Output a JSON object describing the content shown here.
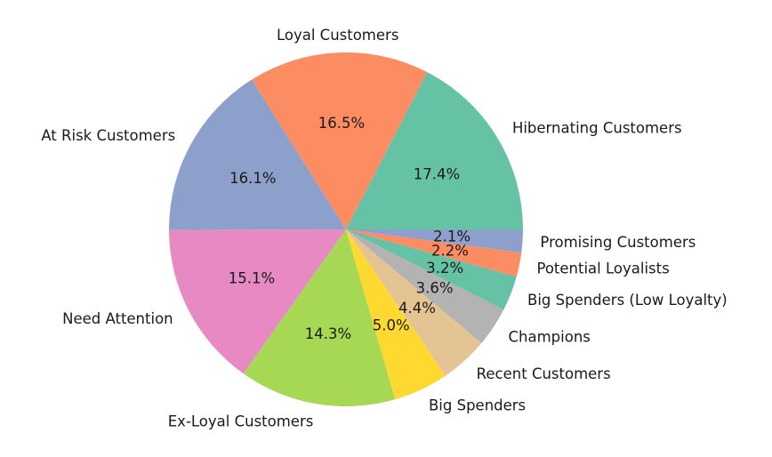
{
  "chart_data": {
    "type": "pie",
    "title": "",
    "start_angle_deg": 0,
    "direction": "counterclockwise",
    "slices": [
      {
        "label": "Hibernating Customers",
        "value": 17.4,
        "pct_label": "17.4%",
        "color": "#66c2a5"
      },
      {
        "label": "Loyal Customers",
        "value": 16.5,
        "pct_label": "16.5%",
        "color": "#fc8d62"
      },
      {
        "label": "At Risk Customers",
        "value": 16.1,
        "pct_label": "16.1%",
        "color": "#8da0cb"
      },
      {
        "label": "Need Attention",
        "value": 15.1,
        "pct_label": "15.1%",
        "color": "#e78ac3"
      },
      {
        "label": "Ex-Loyal Customers",
        "value": 14.3,
        "pct_label": "14.3%",
        "color": "#a6d854"
      },
      {
        "label": "Big Spenders",
        "value": 5.0,
        "pct_label": "5.0%",
        "color": "#ffd92f"
      },
      {
        "label": "Recent Customers",
        "value": 4.4,
        "pct_label": "4.4%",
        "color": "#e5c494"
      },
      {
        "label": "Champions",
        "value": 3.6,
        "pct_label": "3.6%",
        "color": "#b3b3b3"
      },
      {
        "label": "Big Spenders (Low Loyalty)",
        "value": 3.2,
        "pct_label": "3.2%",
        "color": "#66c2a5"
      },
      {
        "label": "Potential Loyalists",
        "value": 2.2,
        "pct_label": "2.2%",
        "color": "#fc8d62"
      },
      {
        "label": "Promising Customers",
        "value": 2.1,
        "pct_label": "2.1%",
        "color": "#8da0cb"
      }
    ]
  }
}
